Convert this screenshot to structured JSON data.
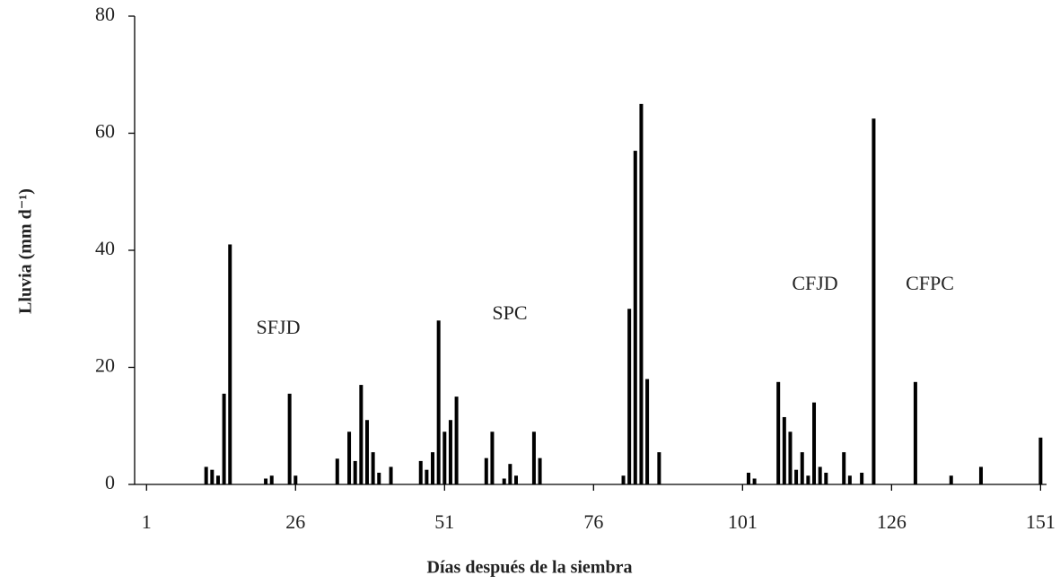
{
  "chart_data": {
    "type": "bar",
    "x_label": "Días después de la siembra",
    "y_label": "Lluvia (mm d⁻¹)",
    "annotations": [
      "SFJD",
      "SPC",
      "CFJD",
      "CFPC"
    ],
    "color": "#000000",
    "x": [
      11,
      12,
      13,
      14,
      15,
      21,
      22,
      25,
      26,
      33,
      35,
      36,
      37,
      38,
      39,
      40,
      42,
      47,
      48,
      49,
      50,
      51,
      52,
      53,
      58,
      59,
      61,
      62,
      63,
      66,
      67,
      81,
      82,
      83,
      84,
      85,
      87,
      102,
      103,
      107,
      108,
      109,
      110,
      111,
      112,
      113,
      114,
      115,
      118,
      119,
      121,
      123,
      130,
      136,
      141,
      151
    ],
    "values": [
      3,
      2.5,
      1.5,
      15.5,
      41,
      1,
      1.5,
      15.5,
      1.5,
      4.4,
      9,
      4,
      17,
      11,
      5.5,
      2,
      3,
      4,
      2.5,
      5.5,
      28,
      9,
      11,
      15,
      4.5,
      9,
      1,
      3.5,
      1.5,
      9,
      4.5,
      1.5,
      30,
      57,
      65,
      18,
      5.5,
      2,
      1,
      17.5,
      11.5,
      9,
      2.5,
      5.5,
      1.5,
      14,
      3,
      2,
      5.5,
      1.5,
      2,
      62.5,
      17.5,
      1.5,
      3,
      8
    ],
    "xlim": [
      -1,
      152
    ],
    "xticks": [
      1,
      26,
      51,
      76,
      101,
      126,
      151
    ],
    "ylim": [
      0,
      80
    ],
    "yticks": [
      0,
      20,
      40,
      60,
      80
    ]
  }
}
